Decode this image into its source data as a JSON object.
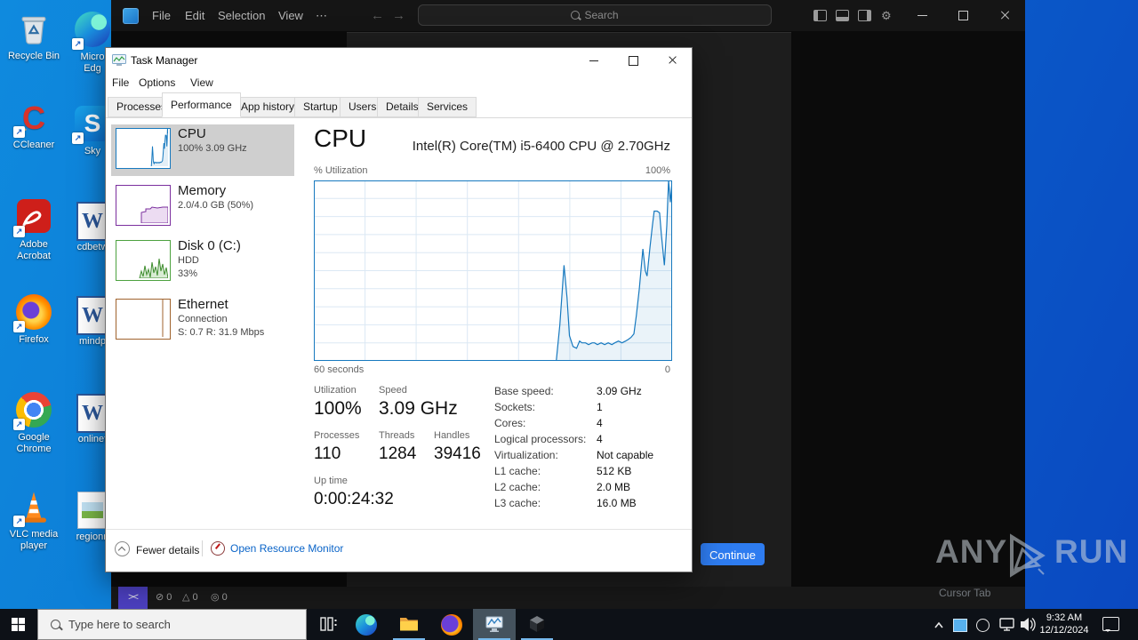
{
  "icons": {
    "shortcut_arrow": "↗",
    "back_arrow": "←",
    "forward_arrow": "→",
    "more_ellipsis": "⋯",
    "gear": "⚙",
    "remote": "><",
    "tray_chevron": "⌃"
  },
  "desktop": {
    "icons": [
      {
        "name": "recycle-bin",
        "line1": "Recycle Bin",
        "line2": ""
      },
      {
        "name": "ccleaner",
        "line1": "CCleaner",
        "line2": ""
      },
      {
        "name": "adobe-acrobat",
        "line1": "Adobe",
        "line2": "Acrobat"
      },
      {
        "name": "firefox",
        "line1": "Firefox",
        "line2": ""
      },
      {
        "name": "google-chrome",
        "line1": "Google",
        "line2": "Chrome"
      },
      {
        "name": "vlc-media-player",
        "line1": "VLC media",
        "line2": "player"
      },
      {
        "name": "microsoft-edge",
        "line1": "Micro",
        "line2": "Edg"
      },
      {
        "name": "skype",
        "line1": "Sky",
        "line2": ""
      },
      {
        "name": "doc-cdbetw",
        "line1": "cdbetw",
        "line2": ""
      },
      {
        "name": "doc-mindp",
        "line1": "mindp",
        "line2": ""
      },
      {
        "name": "doc-onlinef",
        "line1": "onlinef",
        "line2": ""
      },
      {
        "name": "doc-regionn",
        "line1": "regionn",
        "line2": ""
      }
    ]
  },
  "vscode": {
    "menus": {
      "file": "File",
      "edit": "Edit",
      "selection": "Selection",
      "view": "View"
    },
    "search_placeholder": "Search",
    "status": {
      "errors": "0",
      "warnings": "0",
      "extra": "0"
    }
  },
  "panel": {
    "continue_label": "Continue"
  },
  "task_manager": {
    "title": "Task Manager",
    "menus": {
      "file": "File",
      "options": "Options",
      "view": "View"
    },
    "tabs": [
      {
        "label": "Processes"
      },
      {
        "label": "Performance"
      },
      {
        "label": "App history"
      },
      {
        "label": "Startup"
      },
      {
        "label": "Users"
      },
      {
        "label": "Details"
      },
      {
        "label": "Services"
      }
    ],
    "selected_tab": "Performance",
    "sidebar": [
      {
        "title": "CPU",
        "line2": "100% 3.09 GHz",
        "line3": ""
      },
      {
        "title": "Memory",
        "line2": "2.0/4.0 GB (50%)",
        "line3": ""
      },
      {
        "title": "Disk 0 (C:)",
        "line2": "HDD",
        "line3": "33%"
      },
      {
        "title": "Ethernet",
        "line2": "Connection",
        "line3": "S: 0.7 R: 31.9 Mbps"
      }
    ],
    "main": {
      "heading": "CPU",
      "subtitle": "Intel(R) Core(TM) i5-6400 CPU @ 2.70GHz",
      "chart_top_left": "% Utilization",
      "chart_top_right": "100%",
      "chart_bottom_left": "60 seconds",
      "chart_bottom_right": "0",
      "stats": [
        {
          "label": "Utilization",
          "value": "100%"
        },
        {
          "label": "Speed",
          "value": "3.09 GHz"
        },
        {
          "label": "Processes",
          "value": "110"
        },
        {
          "label": "Threads",
          "value": "1284"
        },
        {
          "label": "Handles",
          "value": "39416"
        },
        {
          "label": "Up time",
          "value": "0:00:24:32"
        }
      ],
      "details": [
        {
          "label": "Base speed:",
          "value": "3.09 GHz"
        },
        {
          "label": "Sockets:",
          "value": "1"
        },
        {
          "label": "Cores:",
          "value": "4"
        },
        {
          "label": "Logical processors:",
          "value": "4"
        },
        {
          "label": "Virtualization:",
          "value": "Not capable"
        },
        {
          "label": "L1 cache:",
          "value": "512 KB"
        },
        {
          "label": "L2 cache:",
          "value": "2.0 MB"
        },
        {
          "label": "L3 cache:",
          "value": "16.0 MB"
        }
      ]
    },
    "footer": {
      "fewer_details": "Fewer details",
      "resource_monitor": "Open Resource Monitor"
    }
  },
  "taskbar": {
    "search_placeholder": "Type here to search",
    "time": "9:32 AM",
    "date": "12/12/2024"
  },
  "watermark": {
    "brand_left": "ANY",
    "brand_right": "RUN",
    "subtitle": "Cursor Tab"
  },
  "chart_data": {
    "type": "area",
    "title": "CPU % Utilization (last 60 seconds)",
    "xlabel": "seconds ago",
    "ylabel": "% Utilization",
    "x_range": [
      60,
      0
    ],
    "y_range": [
      0,
      100
    ],
    "grid": {
      "v_divisions": 7,
      "h_divisions": 10
    },
    "x_seconds_ago": [
      19.4,
      18.8,
      18.1,
      17.6,
      17.2,
      16.6,
      16.0,
      15.5,
      15.1,
      14.5,
      14.0,
      13.4,
      13.0,
      12.5,
      11.9,
      11.3,
      10.7,
      10.1,
      9.6,
      9.0,
      8.4,
      7.8,
      7.3,
      6.9,
      6.4,
      6.0,
      5.5,
      4.9,
      4.5,
      4.2,
      3.7,
      3.3,
      3.0,
      2.5,
      2.1,
      1.8,
      1.3,
      0.9,
      0.6,
      0.3,
      0
    ],
    "series": [
      {
        "name": "CPU utilization %",
        "values": [
          0,
          20,
          53,
          35,
          14,
          8,
          7,
          11,
          10,
          10,
          9,
          10,
          10,
          9,
          10,
          9,
          10,
          9,
          10,
          11,
          10,
          11,
          12,
          13,
          15,
          25,
          40,
          62,
          50,
          47,
          63,
          75,
          83,
          83,
          82,
          70,
          53,
          75,
          100,
          88,
          100
        ]
      }
    ]
  }
}
